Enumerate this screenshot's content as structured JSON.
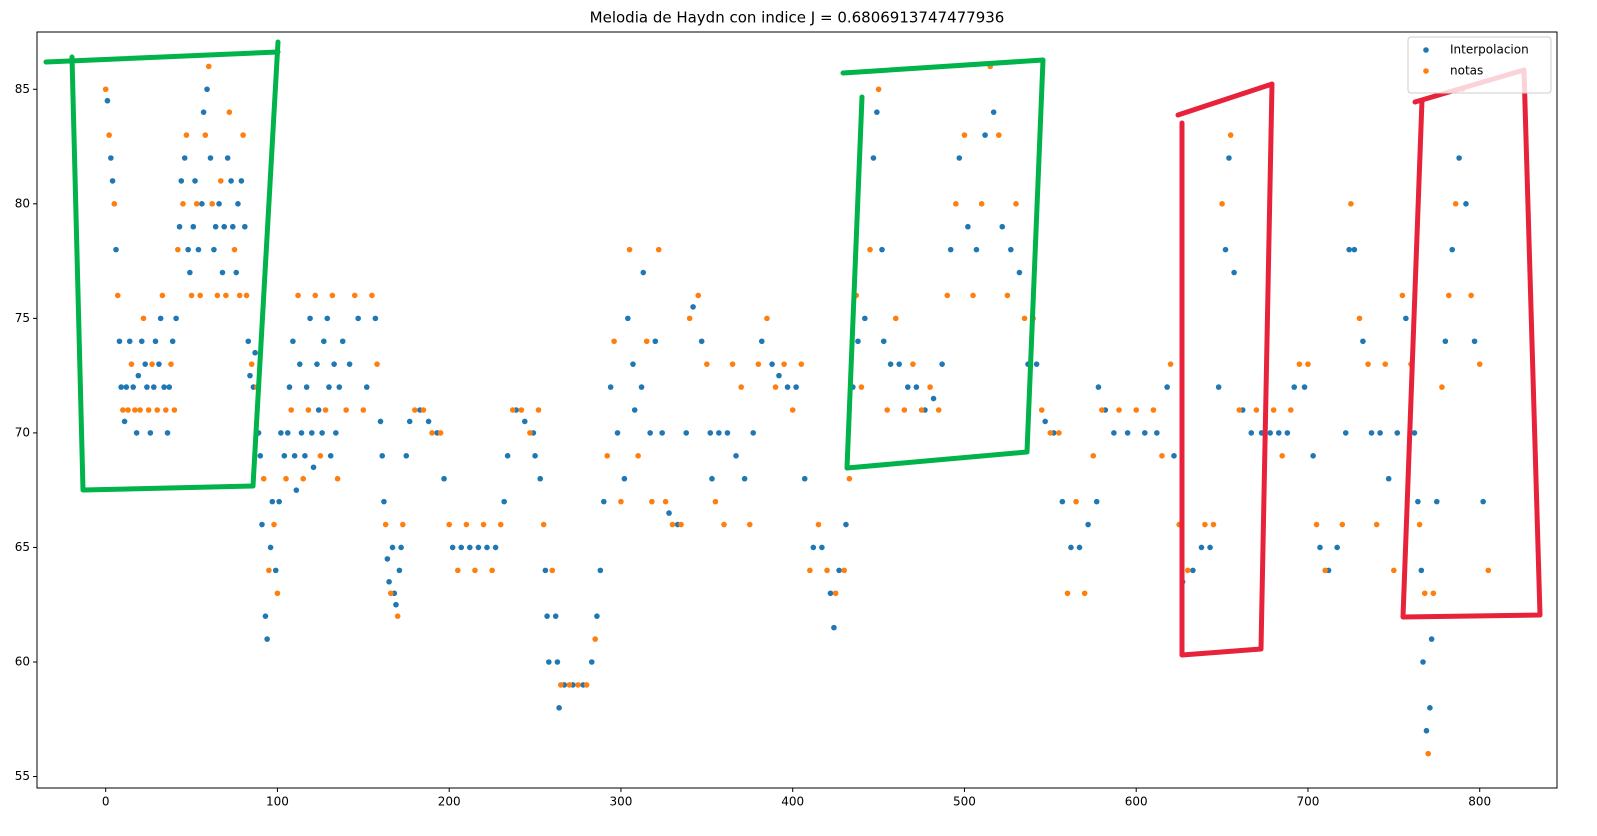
{
  "chart_data": {
    "type": "scatter",
    "title": "Melodia de Haydn con indice J = 0.6806913747477936",
    "xlim": [
      -40,
      845
    ],
    "ylim": [
      54.5,
      87.5
    ],
    "xticks": [
      0,
      100,
      200,
      300,
      400,
      500,
      600,
      700,
      800
    ],
    "yticks": [
      55,
      60,
      65,
      70,
      75,
      80,
      85
    ],
    "legend": "upper right",
    "series": [
      {
        "name": "Interpolacion",
        "color": "#1f77b4",
        "x": [
          1,
          3,
          4,
          6,
          8,
          9,
          11,
          12,
          14,
          16,
          18,
          19,
          21,
          23,
          24,
          26,
          28,
          29,
          31,
          32,
          34,
          36,
          37,
          39,
          41,
          43,
          44,
          46,
          48,
          49,
          51,
          52,
          54,
          56,
          57,
          59,
          61,
          63,
          64,
          66,
          68,
          69,
          71,
          73,
          74,
          76,
          77,
          79,
          81,
          83,
          84,
          86,
          87,
          89,
          90,
          91,
          93,
          94,
          96,
          97,
          99,
          101,
          102,
          104,
          106,
          107,
          109,
          110,
          111,
          113,
          114,
          116,
          117,
          119,
          120,
          121,
          123,
          124,
          126,
          127,
          129,
          130,
          131,
          133,
          134,
          136,
          138,
          142,
          147,
          152,
          157,
          160,
          161,
          162,
          164,
          165,
          167,
          168,
          169,
          171,
          172,
          175,
          177,
          183,
          188,
          193,
          197,
          202,
          207,
          212,
          217,
          222,
          227,
          232,
          234,
          239,
          244,
          249,
          250,
          253,
          256,
          257,
          258,
          262,
          263,
          264,
          267,
          272,
          278,
          283,
          286,
          288,
          290,
          294,
          298,
          302,
          304,
          307,
          308,
          312,
          313,
          317,
          320,
          324,
          328,
          333,
          338,
          342,
          347,
          352,
          353,
          357,
          362,
          367,
          372,
          377,
          382,
          388,
          392,
          397,
          402,
          407,
          412,
          417,
          422,
          424,
          427,
          431,
          435,
          438,
          442,
          447,
          449,
          452,
          453,
          457,
          462,
          467,
          472,
          477,
          482,
          487,
          492,
          497,
          502,
          507,
          512,
          517,
          522,
          527,
          532,
          537,
          542,
          547,
          552,
          557,
          562,
          567,
          572,
          577,
          578,
          582,
          587,
          595,
          605,
          612,
          618,
          622,
          627,
          633,
          638,
          643,
          648,
          652,
          654,
          657,
          662,
          667,
          673,
          678,
          683,
          688,
          692,
          698,
          703,
          707,
          712,
          717,
          722,
          724,
          727,
          732,
          737,
          742,
          747,
          752,
          757,
          762,
          764,
          766,
          767,
          769,
          771,
          772,
          775,
          780,
          784,
          788,
          792,
          797,
          802
        ],
        "values": [
          84.5,
          82,
          81,
          78,
          74,
          72,
          70.5,
          72,
          74,
          72,
          70,
          72.5,
          74,
          73,
          72,
          70,
          72,
          74,
          73,
          75,
          72,
          70,
          72,
          74,
          75,
          79,
          81,
          82,
          78,
          77,
          79,
          81,
          78,
          80,
          84,
          85,
          82,
          78,
          79,
          80,
          77,
          79,
          82,
          81,
          79,
          77,
          80,
          81,
          79,
          74,
          72.5,
          72,
          73.5,
          70,
          69,
          66,
          62,
          61,
          65,
          67,
          64,
          67,
          70,
          69,
          70,
          72,
          74,
          69,
          67.5,
          73,
          70,
          69,
          72,
          75,
          70,
          68.5,
          73,
          71,
          70,
          74,
          75,
          72,
          69,
          73,
          70,
          72,
          74,
          73,
          75,
          72,
          75,
          70.5,
          69,
          67,
          64.5,
          63.5,
          65,
          63,
          62.5,
          64,
          65,
          69,
          70.5,
          71,
          70.5,
          70,
          68,
          65,
          65,
          65,
          65,
          65,
          65,
          67,
          69,
          71,
          70.5,
          70,
          69,
          68,
          64,
          62,
          60,
          62,
          60,
          58,
          59,
          59,
          59,
          60,
          62,
          64,
          67,
          72,
          70,
          68,
          75,
          73,
          71,
          72,
          77,
          70,
          74,
          70,
          66.5,
          66,
          70,
          75.5,
          74,
          70,
          68,
          70,
          70,
          69,
          68,
          70,
          74,
          73,
          72.5,
          72,
          72,
          68,
          65,
          65,
          63,
          61.5,
          64,
          66,
          72,
          74,
          75,
          82,
          84,
          78,
          74,
          73,
          73,
          72,
          72,
          71,
          71.5,
          73,
          78,
          82,
          79,
          78,
          83,
          84,
          79,
          78,
          77,
          73,
          73,
          70.5,
          70,
          67,
          65,
          65,
          66,
          67,
          72,
          71,
          70,
          70,
          70,
          70,
          72,
          69,
          63.5,
          64,
          65,
          65,
          72,
          78,
          82,
          77,
          71,
          70,
          70,
          70,
          70,
          70,
          72,
          72,
          69,
          65,
          64,
          65,
          70,
          78,
          78,
          74,
          70,
          70,
          68,
          70,
          75,
          70,
          67,
          64,
          60,
          57,
          58,
          61,
          67,
          74,
          78,
          82,
          80,
          74,
          67
        ]
      },
      {
        "name": "notas",
        "color": "#ff7f0e",
        "x": [
          0,
          2,
          5,
          7,
          10,
          13,
          15,
          17,
          20,
          22,
          25,
          27,
          30,
          33,
          35,
          38,
          40,
          42,
          45,
          47,
          50,
          53,
          55,
          58,
          60,
          62,
          65,
          67,
          70,
          72,
          75,
          78,
          80,
          82,
          85,
          88,
          92,
          95,
          98,
          100,
          105,
          108,
          112,
          115,
          118,
          122,
          125,
          128,
          132,
          135,
          140,
          145,
          150,
          155,
          158,
          163,
          166,
          170,
          173,
          180,
          185,
          190,
          195,
          200,
          205,
          210,
          215,
          220,
          225,
          230,
          237,
          242,
          247,
          252,
          255,
          260,
          265,
          270,
          275,
          280,
          285,
          292,
          296,
          300,
          305,
          310,
          315,
          318,
          322,
          326,
          330,
          335,
          340,
          345,
          350,
          355,
          360,
          365,
          370,
          375,
          380,
          385,
          390,
          395,
          400,
          405,
          410,
          415,
          420,
          425,
          430,
          433,
          437,
          440,
          445,
          450,
          455,
          460,
          465,
          470,
          475,
          480,
          485,
          490,
          495,
          500,
          505,
          510,
          515,
          520,
          525,
          530,
          535,
          540,
          545,
          550,
          555,
          560,
          565,
          570,
          575,
          580,
          590,
          600,
          610,
          615,
          620,
          625,
          630,
          640,
          645,
          650,
          655,
          660,
          670,
          680,
          685,
          690,
          695,
          700,
          705,
          710,
          720,
          725,
          730,
          735,
          740,
          745,
          750,
          755,
          760,
          765,
          768,
          770,
          773,
          778,
          782,
          786,
          790,
          795,
          800,
          805
        ],
        "values": [
          85,
          83,
          80,
          76,
          71,
          71,
          73,
          71,
          71,
          75,
          71,
          73,
          71,
          76,
          71,
          73,
          71,
          78,
          80,
          83,
          76,
          80,
          76,
          83,
          86,
          80,
          76,
          81,
          76,
          84,
          78,
          76,
          83,
          76,
          73,
          72,
          68,
          64,
          66,
          63,
          68,
          71,
          76,
          68,
          71,
          76,
          69,
          71,
          76,
          68,
          71,
          76,
          71,
          76,
          73,
          66,
          63,
          62,
          66,
          71,
          71,
          70,
          70,
          66,
          64,
          66,
          64,
          66,
          64,
          66,
          71,
          71,
          70,
          71,
          66,
          64,
          59,
          59,
          59,
          59,
          61,
          69,
          74,
          67,
          78,
          69,
          74,
          67,
          78,
          67,
          66,
          66,
          75,
          76,
          73,
          67,
          66,
          73,
          72,
          66,
          73,
          75,
          72,
          73,
          71,
          73,
          64,
          66,
          64,
          63,
          64,
          68,
          76,
          72,
          78,
          85,
          71,
          75,
          71,
          73,
          71,
          72,
          71,
          76,
          80,
          83,
          76,
          80,
          86,
          83,
          76,
          80,
          75,
          75,
          71,
          70,
          70,
          63,
          67,
          63,
          69,
          71,
          71,
          71,
          71,
          69,
          73,
          66,
          64,
          66,
          66,
          80,
          83,
          71,
          71,
          71,
          69,
          71,
          73,
          73,
          66,
          64,
          66,
          80,
          75,
          73,
          66,
          73,
          64,
          76,
          73,
          66,
          63,
          56,
          63,
          72,
          76,
          80,
          85,
          76,
          73,
          64
        ]
      }
    ]
  }
}
